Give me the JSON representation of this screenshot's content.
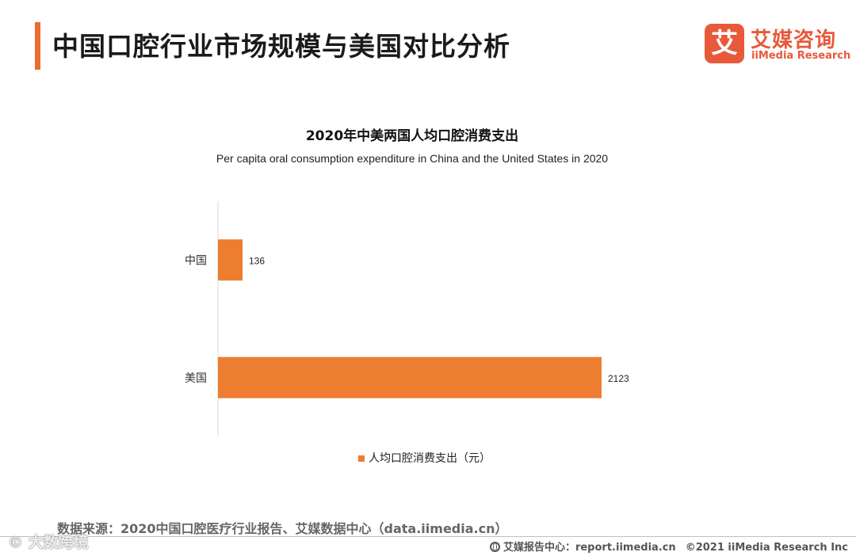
{
  "header": {
    "title": "中国口腔行业市场规模与美国对比分析"
  },
  "logo": {
    "mark": "艾",
    "name_cn": "艾媒咨询",
    "name_en": "iiMedia Research"
  },
  "colors": {
    "accent": "#ee6b2f",
    "bar": "#ed7d31",
    "logo": "#e8593a",
    "axis": "#d9d9d9"
  },
  "chart_data": {
    "type": "bar",
    "orientation": "horizontal",
    "title": "2020年中美两国人均口腔消费支出",
    "subtitle": "Per capita oral consumption expenditure in China and the United States in 2020",
    "categories": [
      "中国",
      "美国"
    ],
    "series": [
      {
        "name": "人均口腔消费支出（元）",
        "values": [
          136,
          2123
        ]
      }
    ],
    "xlim": [
      0,
      2200
    ],
    "grid": false,
    "legend": "bottom"
  },
  "footer": {
    "source": "数据来源：2020中国口腔医疗行业报告、艾媒数据中心（data.iimedia.cn）",
    "site": "艾媒报告中心：report.iimedia.cn",
    "copyright": "©2021  iiMedia Research  Inc"
  },
  "watermark": {
    "text": "© 大数跨境"
  }
}
